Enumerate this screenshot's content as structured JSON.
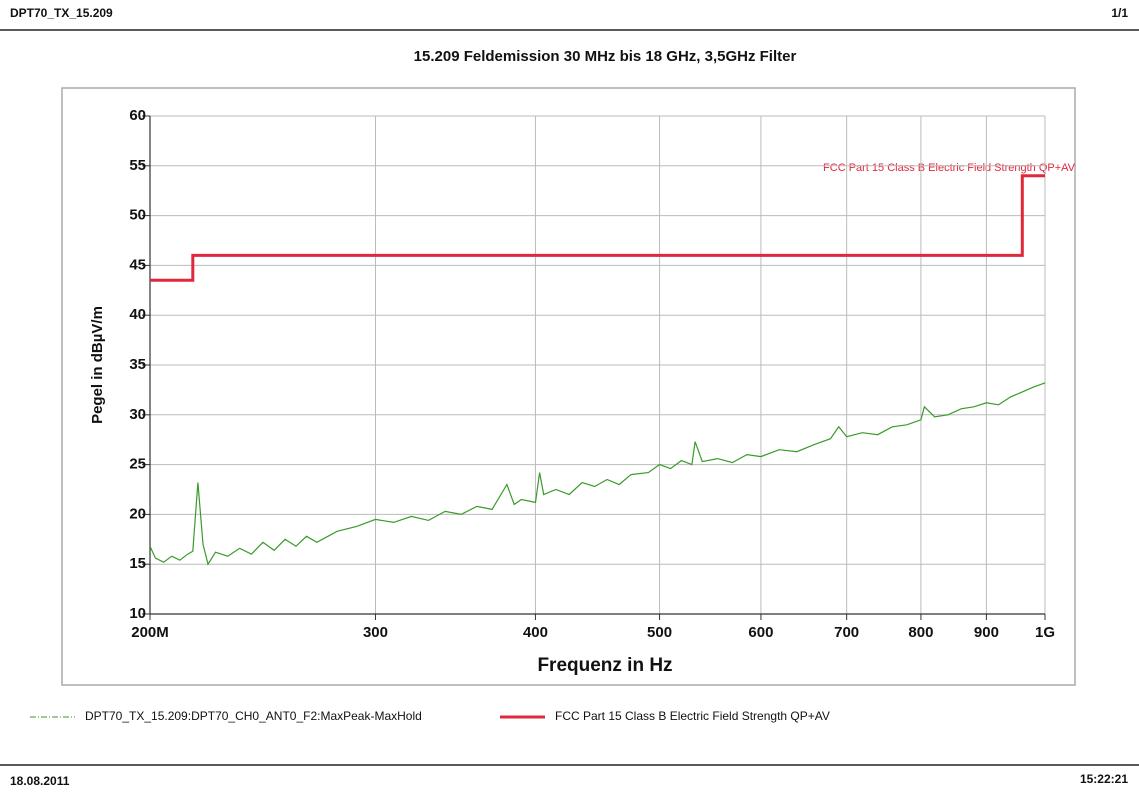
{
  "header": {
    "document": "DPT70_TX_15.209",
    "page": "1/1"
  },
  "footer": {
    "date": "18.08.2011",
    "time": "15:22:21"
  },
  "chart_data": {
    "type": "line",
    "title": "15.209 Feldemission 30 MHz bis 18 GHz, 3,5GHz Filter",
    "x_label": "Frequenz in Hz",
    "y_label": "Pegel in dBµV/m",
    "annotation": "FCC Part 15 Class B Electric Field Strength QP+AV",
    "x_scale": "log",
    "grid": true,
    "xlim": [
      200000000,
      1000000000
    ],
    "xticks": [
      {
        "value": 200000000,
        "label": "200M"
      },
      {
        "value": 300000000,
        "label": "300"
      },
      {
        "value": 400000000,
        "label": "400"
      },
      {
        "value": 500000000,
        "label": "500"
      },
      {
        "value": 600000000,
        "label": "600"
      },
      {
        "value": 700000000,
        "label": "700"
      },
      {
        "value": 800000000,
        "label": "800"
      },
      {
        "value": 900000000,
        "label": "900"
      },
      {
        "value": 1000000000,
        "label": "1G"
      }
    ],
    "ylim": [
      10,
      60
    ],
    "yticks": [
      10,
      15,
      20,
      25,
      30,
      35,
      40,
      45,
      50,
      55,
      60
    ],
    "series": [
      {
        "name": "DPT70_TX_15.209:DPT70_CH0_ANT0_F2:MaxPeak-MaxHold",
        "color": "#3a9a2a",
        "style": "dashdot",
        "x": [
          200000000,
          202000000,
          205000000,
          208000000,
          211000000,
          214000000,
          216000000,
          218000000,
          220000000,
          222000000,
          225000000,
          230000000,
          235000000,
          240000000,
          245000000,
          250000000,
          255000000,
          260000000,
          265000000,
          270000000,
          280000000,
          290000000,
          300000000,
          310000000,
          320000000,
          330000000,
          340000000,
          350000000,
          360000000,
          370000000,
          380000000,
          385000000,
          390000000,
          400000000,
          403000000,
          406000000,
          415000000,
          425000000,
          435000000,
          445000000,
          455000000,
          465000000,
          475000000,
          490000000,
          500000000,
          510000000,
          520000000,
          530000000,
          533000000,
          540000000,
          555000000,
          570000000,
          585000000,
          600000000,
          620000000,
          640000000,
          660000000,
          680000000,
          690000000,
          700000000,
          720000000,
          740000000,
          760000000,
          780000000,
          800000000,
          805000000,
          820000000,
          840000000,
          860000000,
          880000000,
          900000000,
          920000000,
          940000000,
          960000000,
          980000000,
          1000000000
        ],
        "values": [
          16.8,
          15.6,
          15.2,
          15.8,
          15.4,
          16.0,
          16.3,
          23.2,
          17.0,
          15.0,
          16.2,
          15.8,
          16.6,
          16.0,
          17.2,
          16.4,
          17.5,
          16.8,
          17.8,
          17.2,
          18.3,
          18.8,
          19.5,
          19.2,
          19.8,
          19.4,
          20.3,
          20.0,
          20.8,
          20.5,
          23.0,
          21.0,
          21.5,
          21.2,
          24.2,
          22.0,
          22.5,
          22.0,
          23.2,
          22.8,
          23.5,
          23.0,
          24.0,
          24.2,
          25.0,
          24.6,
          25.4,
          25.0,
          27.3,
          25.3,
          25.6,
          25.2,
          26.0,
          25.8,
          26.5,
          26.3,
          27.0,
          27.6,
          28.8,
          27.8,
          28.2,
          28.0,
          28.8,
          29.0,
          29.5,
          30.8,
          29.8,
          30.0,
          30.6,
          30.8,
          31.2,
          31.0,
          31.8,
          32.3,
          32.8,
          33.2
        ]
      },
      {
        "name": "FCC Part 15 Class B Electric Field Strength QP+AV",
        "color": "#e0283c",
        "style": "solid",
        "x": [
          200000000,
          216000000,
          216000000,
          960000000,
          960000000,
          1000000000
        ],
        "values": [
          43.5,
          43.5,
          46,
          46,
          54,
          54
        ]
      }
    ]
  }
}
